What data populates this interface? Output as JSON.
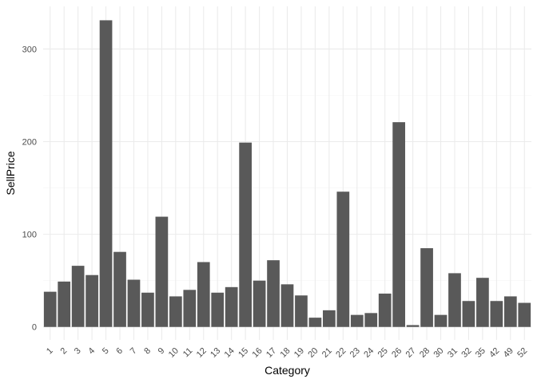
{
  "chart_data": {
    "type": "bar",
    "title": "",
    "xlabel": "Category",
    "ylabel": "SellPrice",
    "categories": [
      "1",
      "2",
      "3",
      "4",
      "5",
      "6",
      "7",
      "8",
      "9",
      "10",
      "11",
      "12",
      "13",
      "14",
      "15",
      "16",
      "17",
      "18",
      "19",
      "20",
      "21",
      "22",
      "23",
      "24",
      "25",
      "26",
      "27",
      "28",
      "30",
      "31",
      "32",
      "35",
      "42",
      "49",
      "52"
    ],
    "values": [
      38,
      49,
      66,
      56,
      331,
      81,
      51,
      37,
      119,
      33,
      40,
      70,
      37,
      43,
      199,
      50,
      72,
      46,
      34,
      10,
      18,
      146,
      13,
      15,
      36,
      221,
      2,
      85,
      13,
      58,
      28,
      53,
      28,
      33,
      26
    ],
    "yticks": [
      0,
      100,
      200,
      300
    ],
    "ylim": [
      -14,
      346
    ],
    "grid": true,
    "legend": "none",
    "colors": {
      "bar": "#595959",
      "grid_major": "#ebebeb",
      "grid_minor": "#f5f5f5",
      "tick_text": "#4d4d4d",
      "title_text": "#000000"
    }
  }
}
